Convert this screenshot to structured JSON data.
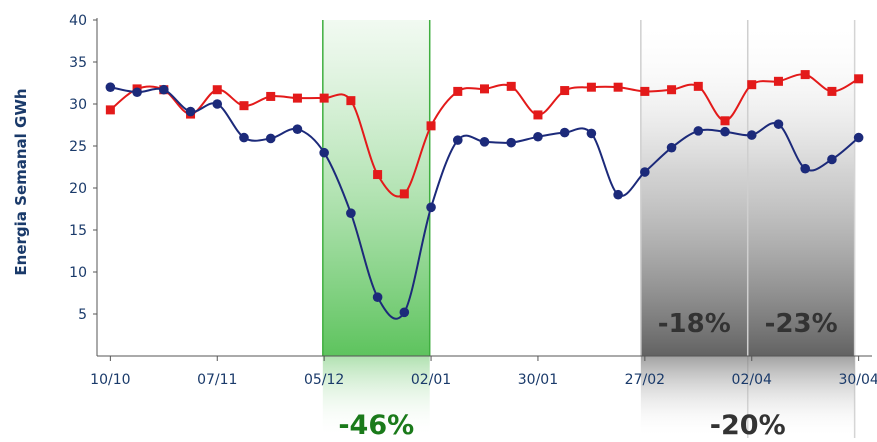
{
  "chart_data": {
    "type": "line",
    "ylabel": "Energia Semanal GWh",
    "xlabel": "",
    "ylim": [
      0,
      40
    ],
    "yticks": [
      5,
      10,
      15,
      20,
      25,
      30,
      35,
      40
    ],
    "xlim": [
      -0.5,
      28.5
    ],
    "xticks": [
      {
        "x": 0,
        "label": "10/10"
      },
      {
        "x": 4,
        "label": "07/11"
      },
      {
        "x": 8,
        "label": "05/12"
      },
      {
        "x": 12,
        "label": "02/01"
      },
      {
        "x": 16,
        "label": "30/01"
      },
      {
        "x": 20,
        "label": "27/02"
      },
      {
        "x": 24,
        "label": "02/04"
      },
      {
        "x": 28,
        "label": "30/04"
      }
    ],
    "grid": false,
    "series": [
      {
        "color": "#e31a1a",
        "marker": "square",
        "x": [
          0,
          1,
          2,
          3,
          4,
          5,
          6,
          7,
          8,
          9,
          10,
          11,
          12,
          13,
          14,
          15,
          16,
          17,
          18,
          19,
          20,
          21,
          22,
          23,
          24,
          25,
          26,
          27,
          28
        ],
        "values": [
          29.3,
          31.8,
          31.7,
          28.8,
          31.7,
          29.8,
          30.9,
          30.7,
          30.7,
          30.4,
          21.6,
          19.3,
          27.4,
          31.5,
          31.8,
          32.1,
          28.7,
          31.6,
          32.0,
          32.0,
          31.5,
          31.7,
          32.1,
          28.0,
          32.3,
          32.7,
          33.5,
          31.5,
          33.0
        ]
      },
      {
        "color": "#1c2a7a",
        "marker": "circle",
        "x": [
          0,
          1,
          2,
          3,
          4,
          5,
          6,
          7,
          8,
          9,
          10,
          11,
          12,
          13,
          14,
          15,
          16,
          17,
          18,
          19,
          20,
          21,
          22,
          23,
          24,
          25,
          26,
          27,
          28
        ],
        "values": [
          32.0,
          31.4,
          31.7,
          29.1,
          30.0,
          26.0,
          25.9,
          27.0,
          24.2,
          17.0,
          7.0,
          5.2,
          17.7,
          25.7,
          25.5,
          25.4,
          26.1,
          26.6,
          26.5,
          19.2,
          21.9,
          24.8,
          26.8,
          26.7,
          26.3,
          27.6,
          22.3,
          23.4,
          26.0
        ]
      }
    ],
    "highlight_bands": [
      {
        "color": "green",
        "label": "-46%",
        "label_color": "#1a7a1a",
        "x0": 7.95,
        "x1": 11.95,
        "label_position": "below"
      },
      {
        "color": "gray",
        "label": "-18%",
        "label_color": "#333333",
        "x0": 19.85,
        "x1": 23.85,
        "label_position": "inside"
      },
      {
        "color": "gray",
        "label": "-23%",
        "label_color": "#333333",
        "x0": 23.85,
        "x1": 27.85,
        "label_position": "inside"
      },
      {
        "color": "gray",
        "label": "-20%",
        "label_color": "#333333",
        "x0": 19.85,
        "x1": 27.85,
        "label_position": "below"
      }
    ],
    "axis_text_color": "#1a3a6a"
  }
}
